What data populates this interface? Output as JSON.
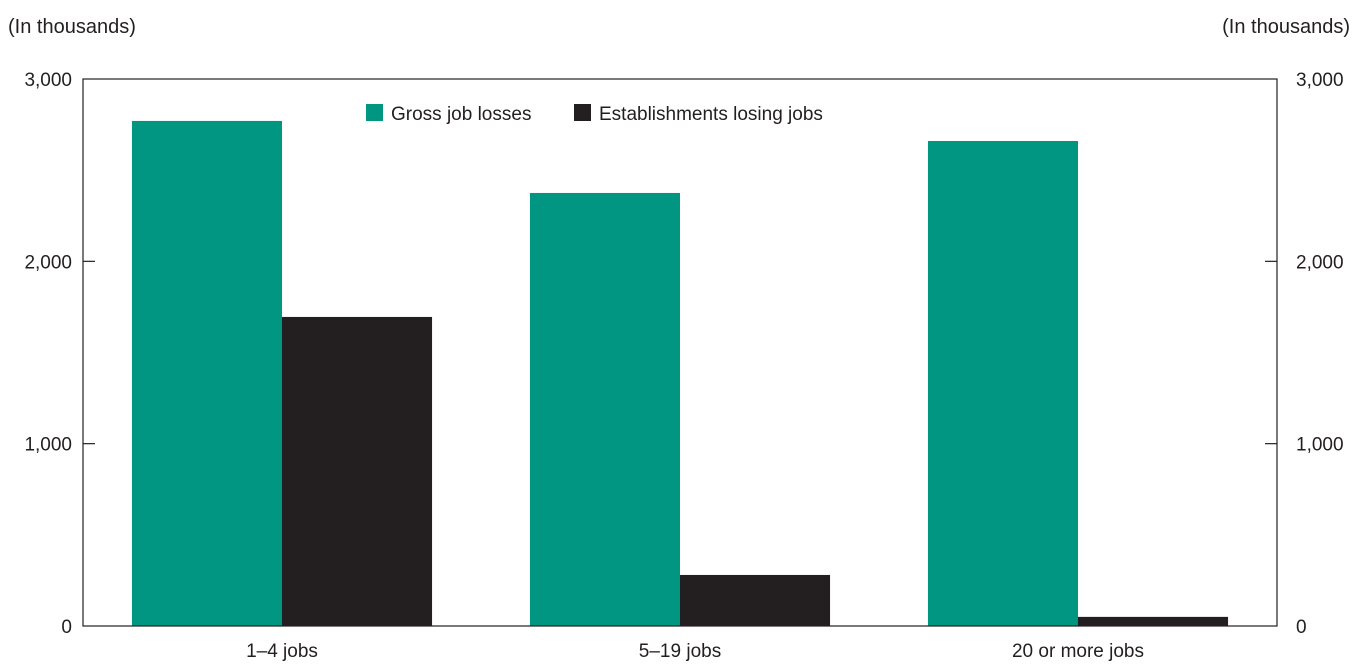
{
  "chart_data": {
    "type": "bar",
    "left_axis_unit": "(In thousands)",
    "right_axis_unit": "(In thousands)",
    "categories": [
      "1–4 jobs",
      "5–19 jobs",
      "20 or more jobs"
    ],
    "series": [
      {
        "name": "Gross job losses",
        "color": "#009681",
        "values": [
          2770,
          2375,
          2660
        ]
      },
      {
        "name": "Establishments losing jobs",
        "color": "#231f20",
        "values": [
          1695,
          280,
          50
        ]
      }
    ],
    "ylim": [
      0,
      3000
    ],
    "yticks": [
      0,
      1000,
      2000,
      3000
    ],
    "ytick_labels": [
      "0",
      "1,000",
      "2,000",
      "3,000"
    ],
    "grid": false,
    "legend_position": "top-center"
  }
}
